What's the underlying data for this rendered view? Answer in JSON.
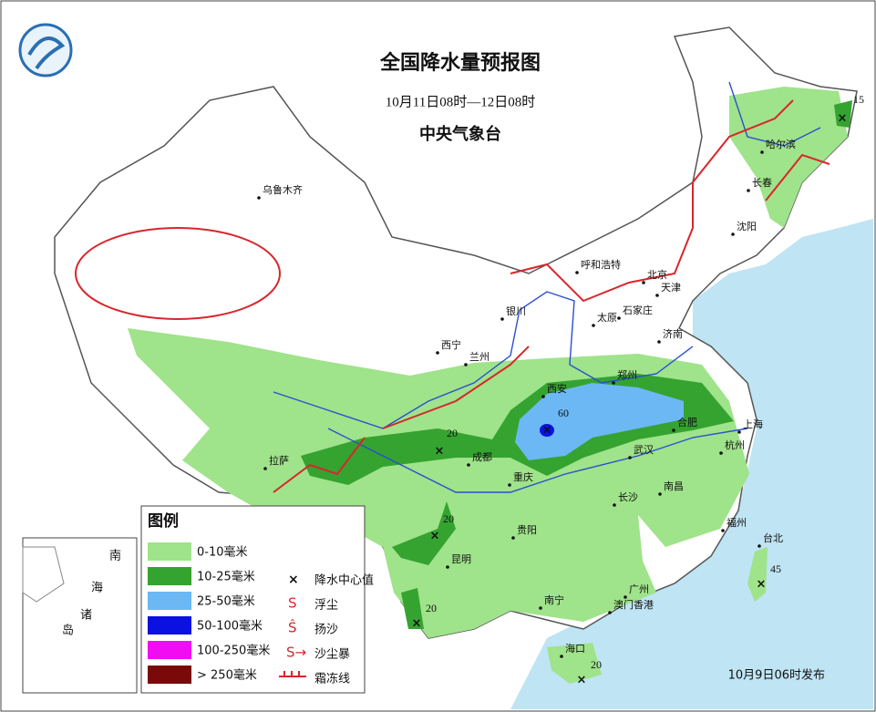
{
  "header": {
    "title": "全国降水量预报图",
    "subtitle": "10月11日08时—12日08时",
    "issuer": "中央气象台"
  },
  "legend": {
    "title": "图例",
    "fill_items": [
      {
        "label": "0-10毫米",
        "color": "#9fe38a"
      },
      {
        "label": "10-25毫米",
        "color": "#35a330"
      },
      {
        "label": "25-50毫米",
        "color": "#6cb8f4"
      },
      {
        "label": "50-100毫米",
        "color": "#0a11e0"
      },
      {
        "label": "100-250毫米",
        "color": "#f20cf2"
      },
      {
        "label": "> 250毫米",
        "color": "#7a0a0a"
      }
    ],
    "symbol_items": [
      "降水中心值",
      "浮尘",
      "扬沙",
      "沙尘暴",
      "霜冻线"
    ]
  },
  "cities": [
    "乌鲁木齐",
    "哈尔滨",
    "长春",
    "沈阳",
    "呼和浩特",
    "北京",
    "天津",
    "银川",
    "太原",
    "石家庄",
    "西宁",
    "兰州",
    "济南",
    "西安",
    "郑州",
    "合肥",
    "上海",
    "拉萨",
    "成都",
    "重庆",
    "武汉",
    "杭州",
    "南昌",
    "长沙",
    "贵阳",
    "福州",
    "台北",
    "昆明",
    "南宁",
    "广州",
    "澳门香港",
    "海口"
  ],
  "centers": [
    15,
    60,
    20,
    20,
    20,
    20,
    45
  ],
  "inset": {
    "labels": [
      "南",
      "海",
      "诸",
      "岛"
    ]
  },
  "footer": {
    "issued": "10月9日06时发布"
  }
}
